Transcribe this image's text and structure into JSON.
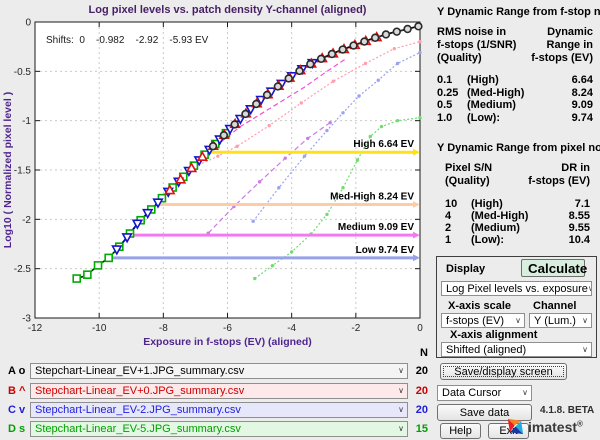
{
  "colors": {
    "title": "#482066",
    "axis_label": "#50258f",
    "tick": "#262626",
    "grid": "#c9c9c9"
  },
  "chart_data": {
    "type": "line",
    "title": "Log pixel levels vs. patch density  Y-channel (aligned)",
    "xlabel": "Exposure in f-stops (EV) (aligned)",
    "ylabel": "Log10 ( Normalized pixel level )",
    "xlim": [
      -12,
      0
    ],
    "ylim": [
      -3,
      0
    ],
    "xticks": [
      -12,
      -10,
      -8,
      -6,
      -4,
      -2,
      0
    ],
    "yticks": [
      0,
      -0.5,
      -1,
      -1.5,
      -2,
      -2.5,
      -3
    ],
    "grid": true,
    "shifts_annotation": "Shifts:  0    -0.982    -2.92    -5.93 EV",
    "curve": [
      [
        -10.7,
        -2.6
      ],
      [
        -10.4,
        -2.57
      ],
      [
        -10.05,
        -2.47
      ],
      [
        -9.7,
        -2.39
      ],
      [
        -9.35,
        -2.27
      ],
      [
        -9.1,
        -2.17
      ],
      [
        -8.8,
        -2.04
      ],
      [
        -8.5,
        -1.94
      ],
      [
        -8.25,
        -1.86
      ],
      [
        -8.0,
        -1.77
      ],
      [
        -7.5,
        -1.61
      ],
      [
        -7.0,
        -1.44
      ],
      [
        -6.64,
        -1.32
      ],
      [
        -6.3,
        -1.21
      ],
      [
        -6.0,
        -1.11
      ],
      [
        -5.5,
        -0.95
      ],
      [
        -5.0,
        -0.8
      ],
      [
        -4.5,
        -0.67
      ],
      [
        -4.0,
        -0.55
      ],
      [
        -3.5,
        -0.44
      ],
      [
        -3.0,
        -0.36
      ],
      [
        -2.5,
        -0.29
      ],
      [
        -2.0,
        -0.23
      ],
      [
        -1.5,
        -0.17
      ],
      [
        -1.0,
        -0.12
      ],
      [
        -0.5,
        -0.08
      ],
      [
        0,
        -0.04
      ]
    ],
    "series": [
      {
        "name": "A",
        "marker": "circle",
        "color": "#2a2a2a",
        "ev_start": -6.45,
        "ev_end": -0.05,
        "n": 20
      },
      {
        "name": "B",
        "marker": "triangle-up",
        "color": "#dd1111",
        "ev_start": -7.8,
        "ev_end": -1.35,
        "n": 20
      },
      {
        "name": "C",
        "marker": "triangle-down",
        "color": "#1515cc",
        "ev_start": -9.45,
        "ev_end": -3.35,
        "n": 20
      },
      {
        "name": "D",
        "marker": "square",
        "color": "#00aa00",
        "ev_start": -10.7,
        "ev_end": -6.05,
        "n": 15
      }
    ],
    "fit_line": {
      "style": "dotted",
      "color": "#000000"
    },
    "dr_lines": [
      {
        "label": "High  6.64 EV",
        "ev": -6.64,
        "level": -1.32,
        "color": "#ffe11a"
      },
      {
        "label": "Med-High  8.24 EV",
        "ev": -8.24,
        "level": -1.85,
        "color": "#ffcba4"
      },
      {
        "label": "Medium  9.09 EV",
        "ev": -9.09,
        "level": -2.16,
        "color": "#f07af0"
      },
      {
        "label": "Low  9.74 EV",
        "ev": -9.74,
        "level": -2.39,
        "color": "#98a2e8"
      }
    ],
    "noise_curves": [
      {
        "color": "#ff9fae",
        "style": "dotted-markers",
        "points": [
          [
            -7.25,
            -1.5
          ],
          [
            -6.3,
            -1.36
          ],
          [
            -5.7,
            -1.26
          ],
          [
            -4.7,
            -1.05
          ],
          [
            -3.7,
            -0.82
          ],
          [
            -2.7,
            -0.6
          ],
          [
            -1.7,
            -0.42
          ],
          [
            -0.8,
            -0.27
          ],
          [
            0,
            -0.2
          ]
        ]
      },
      {
        "color": "#f050d8",
        "style": "dashed",
        "points": [
          [
            -6.6,
            -1.32
          ],
          [
            -5.6,
            -1.06
          ],
          [
            -4.6,
            -0.86
          ],
          [
            -3.6,
            -0.66
          ],
          [
            -2.9,
            -0.5
          ],
          [
            -2.3,
            -0.37
          ]
        ]
      },
      {
        "color": "#cc7ae6",
        "style": "dashed-markers",
        "points": [
          [
            -6.6,
            -2.14
          ],
          [
            -5.8,
            -1.87
          ],
          [
            -5.0,
            -1.62
          ],
          [
            -4.2,
            -1.38
          ],
          [
            -3.5,
            -1.18
          ],
          [
            -2.8,
            -1.02
          ]
        ]
      },
      {
        "color": "#9aa2f2",
        "style": "dotted-markers",
        "points": [
          [
            -5.2,
            -2.02
          ],
          [
            -4.4,
            -1.68
          ],
          [
            -3.6,
            -1.36
          ],
          [
            -2.9,
            -1.1
          ],
          [
            -2.4,
            -0.92
          ],
          [
            -1.9,
            -0.75
          ],
          [
            -1.3,
            -0.59
          ],
          [
            -0.7,
            -0.42
          ],
          [
            0,
            -0.31
          ]
        ]
      },
      {
        "color": "#6fdc6f",
        "style": "dotted-markers",
        "points": [
          [
            -5.15,
            -2.6
          ],
          [
            -4.6,
            -2.47
          ],
          [
            -4.0,
            -2.33
          ],
          [
            -3.4,
            -2.15
          ],
          [
            -2.9,
            -1.95
          ],
          [
            -2.4,
            -1.68
          ],
          [
            -1.95,
            -1.4
          ],
          [
            -1.55,
            -1.16
          ],
          [
            -1.2,
            -1.06
          ],
          [
            -0.7,
            -1.0
          ],
          [
            0,
            -0.97
          ]
        ]
      }
    ]
  },
  "dr_fstop_panel": {
    "title": "Y Dynamic Range from f-stop noise",
    "col1_header": "RMS noise in\nf-stops (1/SNR)\n(Quality)",
    "col2_header": "Dynamic\nRange in\nf-stops (EV)",
    "rows": [
      {
        "noise": "0.1",
        "quality": "(High)",
        "dr": "6.64"
      },
      {
        "noise": "0.25",
        "quality": "(Med-High)",
        "dr": "8.24"
      },
      {
        "noise": "0.5",
        "quality": "(Medium)",
        "dr": "9.09"
      },
      {
        "noise": "1.0",
        "quality": "(Low):",
        "dr": "9.74"
      }
    ]
  },
  "dr_pixel_panel": {
    "title": "Y Dynamic Range from pixel noise",
    "col1_header": "Pixel S/N\n(Quality)",
    "col2_header": "DR in\nf-stops (EV)",
    "rows": [
      {
        "noise": "10",
        "quality": "(High)",
        "dr": "7.1"
      },
      {
        "noise": "4",
        "quality": "(Med-High)",
        "dr": "8.55"
      },
      {
        "noise": "2",
        "quality": "(Medium)",
        "dr": "9.55"
      },
      {
        "noise": "1",
        "quality": "(Low):",
        "dr": "10.4"
      }
    ]
  },
  "display_panel": {
    "label": "Display",
    "calculate_button": "Calculate",
    "display_select": "Log Pixel levels vs. exposure",
    "xaxis_scale_label": "X-axis scale",
    "channel_label": "Channel",
    "xaxis_scale_select": "f-stops (EV)",
    "channel_select": "Y (Lum.)",
    "xaxis_alignment_label": "X-axis alignment",
    "xaxis_alignment_select": "Shifted (aligned)"
  },
  "actions": {
    "save_display": "Save/display screen",
    "data_cursor": "Data Cursor",
    "save_data": "Save data",
    "help": "Help",
    "exit": "Exit",
    "version": "4.1.8. BETA",
    "brand": "imatest",
    "registered": "®"
  },
  "file_rows": {
    "n_header": "N",
    "rows": [
      {
        "letter": "A o",
        "file": "Stepchart-Linear_EV+1.JPG_summary.csv",
        "n": "20",
        "color": "#000000",
        "bg": "#f4f4f4"
      },
      {
        "letter": "B ^",
        "file": "Stepchart-Linear_EV+0.JPG_summary.csv",
        "n": "20",
        "color": "#cc0000",
        "bg": "#fde9e9"
      },
      {
        "letter": "C v",
        "file": "Stepchart-Linear_EV-2.JPG_summary.csv",
        "n": "20",
        "color": "#2020dd",
        "bg": "#e7e7fb"
      },
      {
        "letter": "D s",
        "file": "Stepchart-Linear_EV-5.JPG_summary.csv",
        "n": "15",
        "color": "#00a000",
        "bg": "#e2f8e2"
      }
    ]
  }
}
